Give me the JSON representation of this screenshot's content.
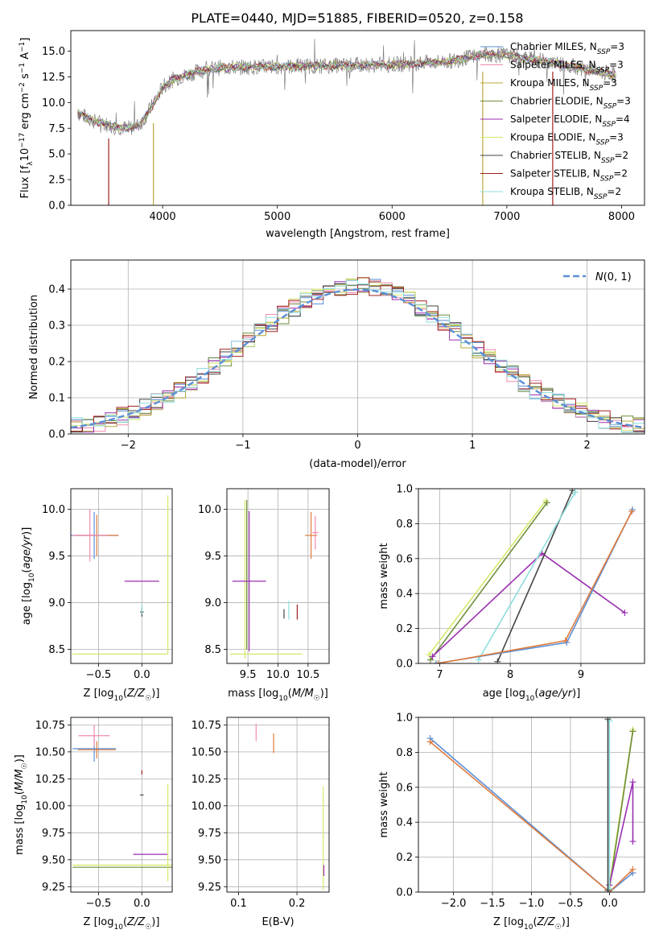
{
  "figure": {
    "title": "PLATE=0440, MJD=51885, FIBERID=0520, z=0.158"
  },
  "colors": {
    "Chabrier MILES": "#5b8fd6",
    "Salpeter MILES": "#f08ab0",
    "Kroupa MILES": "#b6a93a",
    "Chabrier ELODIE": "#6f8d3a",
    "Salpeter ELODIE": "#9b2fb0",
    "Kroupa ELODIE": "#d4e86a",
    "Chabrier STELIB": "#444444",
    "Salpeter STELIB": "#a02020",
    "Kroupa STELIB": "#8fdede",
    "normal": "#5b8fd6",
    "orange": "#e07b3c",
    "grid": "#b0b0b0"
  },
  "chart_data": [
    {
      "id": "spectrum",
      "type": "line",
      "title": "PLATE=0440, MJD=51885, FIBERID=0520, z=0.158",
      "xlabel": "wavelength [Angstrom, rest frame]",
      "ylabel": "Flux [f_λ 10^-17 erg cm^-2 s^-1 A^-1]",
      "xlim": [
        3200,
        8200
      ],
      "ylim": [
        0,
        17
      ],
      "xticks": [
        4000,
        5000,
        6000,
        7000,
        8000
      ],
      "yticks": [
        0.0,
        2.5,
        5.0,
        7.5,
        10.0,
        12.5,
        15.0
      ],
      "ytick_labels": [
        "0.0",
        "2.5",
        "5.0",
        "7.5",
        "10.0",
        "12.5",
        "15.0"
      ],
      "grid": false,
      "legend": "right",
      "legend_entries": [
        {
          "base": "Chabrier MILES, N",
          "sub": "SSP",
          "tail": "=3"
        },
        {
          "base": "Salpeter MILES, N",
          "sub": "SSP",
          "tail": "=3"
        },
        {
          "base": "Kroupa MILES, N",
          "sub": "SSP",
          "tail": "=3"
        },
        {
          "base": "Chabrier ELODIE, N",
          "sub": "SSP",
          "tail": "=3"
        },
        {
          "base": "Salpeter ELODIE, N",
          "sub": "SSP",
          "tail": "=4"
        },
        {
          "base": "Kroupa ELODIE, N",
          "sub": "SSP",
          "tail": "=3"
        },
        {
          "base": "Chabrier STELIB, N",
          "sub": "SSP",
          "tail": "=2"
        },
        {
          "base": "Salpeter STELIB, N",
          "sub": "SSP",
          "tail": "=2"
        },
        {
          "base": "Kroupa STELIB, N",
          "sub": "SSP",
          "tail": "=2"
        }
      ],
      "continuum": {
        "x": [
          3260,
          3400,
          3500,
          3600,
          3700,
          3800,
          3900,
          4000,
          4100,
          4300,
          4500,
          5000,
          5500,
          6000,
          6500,
          6800,
          7000,
          7400,
          7800,
          7950
        ],
        "y": [
          9.0,
          8.2,
          7.9,
          7.6,
          7.5,
          7.8,
          9.5,
          11.5,
          12.3,
          13.0,
          13.4,
          13.5,
          13.6,
          13.7,
          14.0,
          14.7,
          14.6,
          13.9,
          13.0,
          12.7
        ]
      },
      "spikes": [
        {
          "x": 3530,
          "y0": 6.5,
          "y1": 0,
          "series": "Salpeter STELIB"
        },
        {
          "x": 3920,
          "y0": 8.0,
          "y1": 0,
          "series": "Kroupa MILES"
        },
        {
          "x": 6790,
          "y0": 13.0,
          "y1": 0,
          "series": "Kroupa MILES"
        },
        {
          "x": 7400,
          "y0": 13.0,
          "y1": 0,
          "series": "Salpeter STELIB"
        }
      ]
    },
    {
      "id": "residuals",
      "type": "histogram",
      "xlabel": "(data-model)/error",
      "ylabel": "Normed distribution",
      "xlim": [
        -2.5,
        2.5
      ],
      "ylim": [
        0,
        0.48
      ],
      "xticks": [
        -2,
        -1,
        0,
        1,
        2
      ],
      "xtick_labels": [
        "−2",
        "−1",
        "0",
        "1",
        "2"
      ],
      "yticks": [
        0.0,
        0.1,
        0.2,
        0.3,
        0.4
      ],
      "ytick_labels": [
        "0.0",
        "0.1",
        "0.2",
        "0.3",
        "0.4"
      ],
      "grid": true,
      "legend": "top-right",
      "normal_label": "𝒩(0, 1)",
      "normal_label_parts": {
        "main": "N",
        "args": "(0, 1)"
      }
    },
    {
      "id": "age-vs-Z",
      "type": "scatter",
      "xlabel": "Z [log10(Z/Z☉)]",
      "ylabel": "age [log10(age/yr)]",
      "xlim": [
        -0.82,
        0.35
      ],
      "ylim": [
        8.35,
        10.22
      ],
      "xticks": [
        -0.5,
        0.0
      ],
      "xtick_labels": [
        "−0.5",
        "0.0"
      ],
      "yticks": [
        8.5,
        9.0,
        9.5,
        10.0
      ],
      "ytick_labels": [
        "8.5",
        "9.0",
        "9.5",
        "10.0"
      ],
      "grid": true
    },
    {
      "id": "age-vs-mass",
      "type": "scatter",
      "xlabel": "mass [log10(M/M☉)]",
      "ylabel": "",
      "xlim": [
        9.15,
        10.85
      ],
      "ylim": [
        8.35,
        10.22
      ],
      "xticks": [
        9.5,
        10.0,
        10.5
      ],
      "xtick_labels": [
        "9.5",
        "10.0",
        "10.5"
      ],
      "yticks": [
        8.5,
        9.0,
        9.5,
        10.0
      ],
      "ytick_labels": [
        "8.5",
        "9.0",
        "9.5",
        "10.0"
      ],
      "grid": true
    },
    {
      "id": "massweight-vs-age",
      "type": "line",
      "xlabel": "age [log10(age/yr)]",
      "ylabel": "mass weight",
      "xlim": [
        6.7,
        9.9
      ],
      "ylim": [
        0,
        1
      ],
      "xticks": [
        7,
        8,
        9
      ],
      "xtick_labels": [
        "7",
        "8",
        "9"
      ],
      "yticks": [
        0.0,
        0.2,
        0.4,
        0.6,
        0.8,
        1.0
      ],
      "ytick_labels": [
        "0.0",
        "0.2",
        "0.4",
        "0.6",
        "0.8",
        "1.0"
      ],
      "grid": true,
      "series": [
        {
          "name": "Kroupa ELODIE",
          "x": [
            6.85,
            8.5
          ],
          "y": [
            0.05,
            0.93
          ]
        },
        {
          "name": "Chabrier ELODIE",
          "x": [
            6.87,
            8.52
          ],
          "y": [
            0.02,
            0.92
          ]
        },
        {
          "name": "Salpeter ELODIE",
          "x": [
            6.9,
            8.45,
            9.62
          ],
          "y": [
            0.04,
            0.63,
            0.29
          ]
        },
        {
          "name": "Chabrier STELIB",
          "x": [
            7.82,
            8.88
          ],
          "y": [
            0.01,
            0.99
          ]
        },
        {
          "name": "Kroupa STELIB",
          "x": [
            7.55,
            8.92
          ],
          "y": [
            0.02,
            0.98
          ]
        },
        {
          "name": "Chabrier MILES",
          "x": [
            6.95,
            8.8,
            9.73
          ],
          "y": [
            0.0,
            0.12,
            0.88
          ]
        },
        {
          "name": "orange",
          "x": [
            6.98,
            8.78,
            9.72
          ],
          "y": [
            0.0,
            0.13,
            0.87
          ]
        }
      ]
    },
    {
      "id": "mass-vs-Z",
      "type": "scatter",
      "xlabel": "Z [log10(Z/Z☉)]",
      "ylabel": "mass [log10(M/M☉)]",
      "xlim": [
        -0.82,
        0.35
      ],
      "ylim": [
        9.2,
        10.82
      ],
      "xticks": [
        -0.5,
        0.0
      ],
      "xtick_labels": [
        "−0.5",
        "0.0"
      ],
      "yticks": [
        9.25,
        9.5,
        9.75,
        10.0,
        10.25,
        10.5,
        10.75
      ],
      "ytick_labels": [
        "9.25",
        "9.50",
        "9.75",
        "10.00",
        "10.25",
        "10.50",
        "10.75"
      ],
      "grid": true
    },
    {
      "id": "mass-vs-ebv",
      "type": "scatter",
      "xlabel": "E(B-V)",
      "ylabel": "",
      "xlim": [
        0.08,
        0.255
      ],
      "ylim": [
        9.2,
        10.82
      ],
      "xticks": [
        0.1,
        0.2
      ],
      "xtick_labels": [
        "0.1",
        "0.2"
      ],
      "yticks": [
        9.25,
        9.5,
        9.75,
        10.0,
        10.25,
        10.5,
        10.75
      ],
      "ytick_labels": [
        "9.25",
        "9.50",
        "9.75",
        "10.00",
        "10.25",
        "10.50",
        "10.75"
      ],
      "grid": true
    },
    {
      "id": "massweight-vs-Z",
      "type": "line",
      "xlabel": "Z [log10(Z/Z☉)]",
      "ylabel": "mass weight",
      "xlim": [
        -2.45,
        0.45
      ],
      "ylim": [
        0,
        1
      ],
      "xticks": [
        -2.0,
        -1.5,
        -1.0,
        -0.5,
        0.0
      ],
      "xtick_labels": [
        "−2.0",
        "−1.5",
        "−1.0",
        "−0.5",
        "0.0"
      ],
      "yticks": [
        0.0,
        0.2,
        0.4,
        0.6,
        0.8,
        1.0
      ],
      "ytick_labels": [
        "0.0",
        "0.2",
        "0.4",
        "0.6",
        "0.8",
        "1.0"
      ],
      "grid": true,
      "series": [
        {
          "name": "Chabrier MILES",
          "x": [
            -2.3,
            0.0,
            0.3
          ],
          "y": [
            0.88,
            0.0,
            0.11
          ]
        },
        {
          "name": "orange",
          "x": [
            -2.3,
            0.0,
            0.3
          ],
          "y": [
            0.86,
            0.0,
            0.13
          ]
        },
        {
          "name": "Kroupa ELODIE",
          "x": [
            0.0,
            0.3
          ],
          "y": [
            0.04,
            0.93
          ]
        },
        {
          "name": "Chabrier ELODIE",
          "x": [
            0.0,
            0.3
          ],
          "y": [
            0.02,
            0.92
          ]
        },
        {
          "name": "Salpeter ELODIE",
          "x": [
            0.0,
            0.3,
            0.3
          ],
          "y": [
            0.04,
            0.63,
            0.29
          ]
        },
        {
          "name": "Kroupa STELIB",
          "x": [
            0.0,
            0.0
          ],
          "y": [
            0.02,
            0.98
          ]
        },
        {
          "name": "Chabrier STELIB",
          "x": [
            -0.02,
            -0.02
          ],
          "y": [
            0.01,
            0.99
          ]
        }
      ]
    }
  ]
}
